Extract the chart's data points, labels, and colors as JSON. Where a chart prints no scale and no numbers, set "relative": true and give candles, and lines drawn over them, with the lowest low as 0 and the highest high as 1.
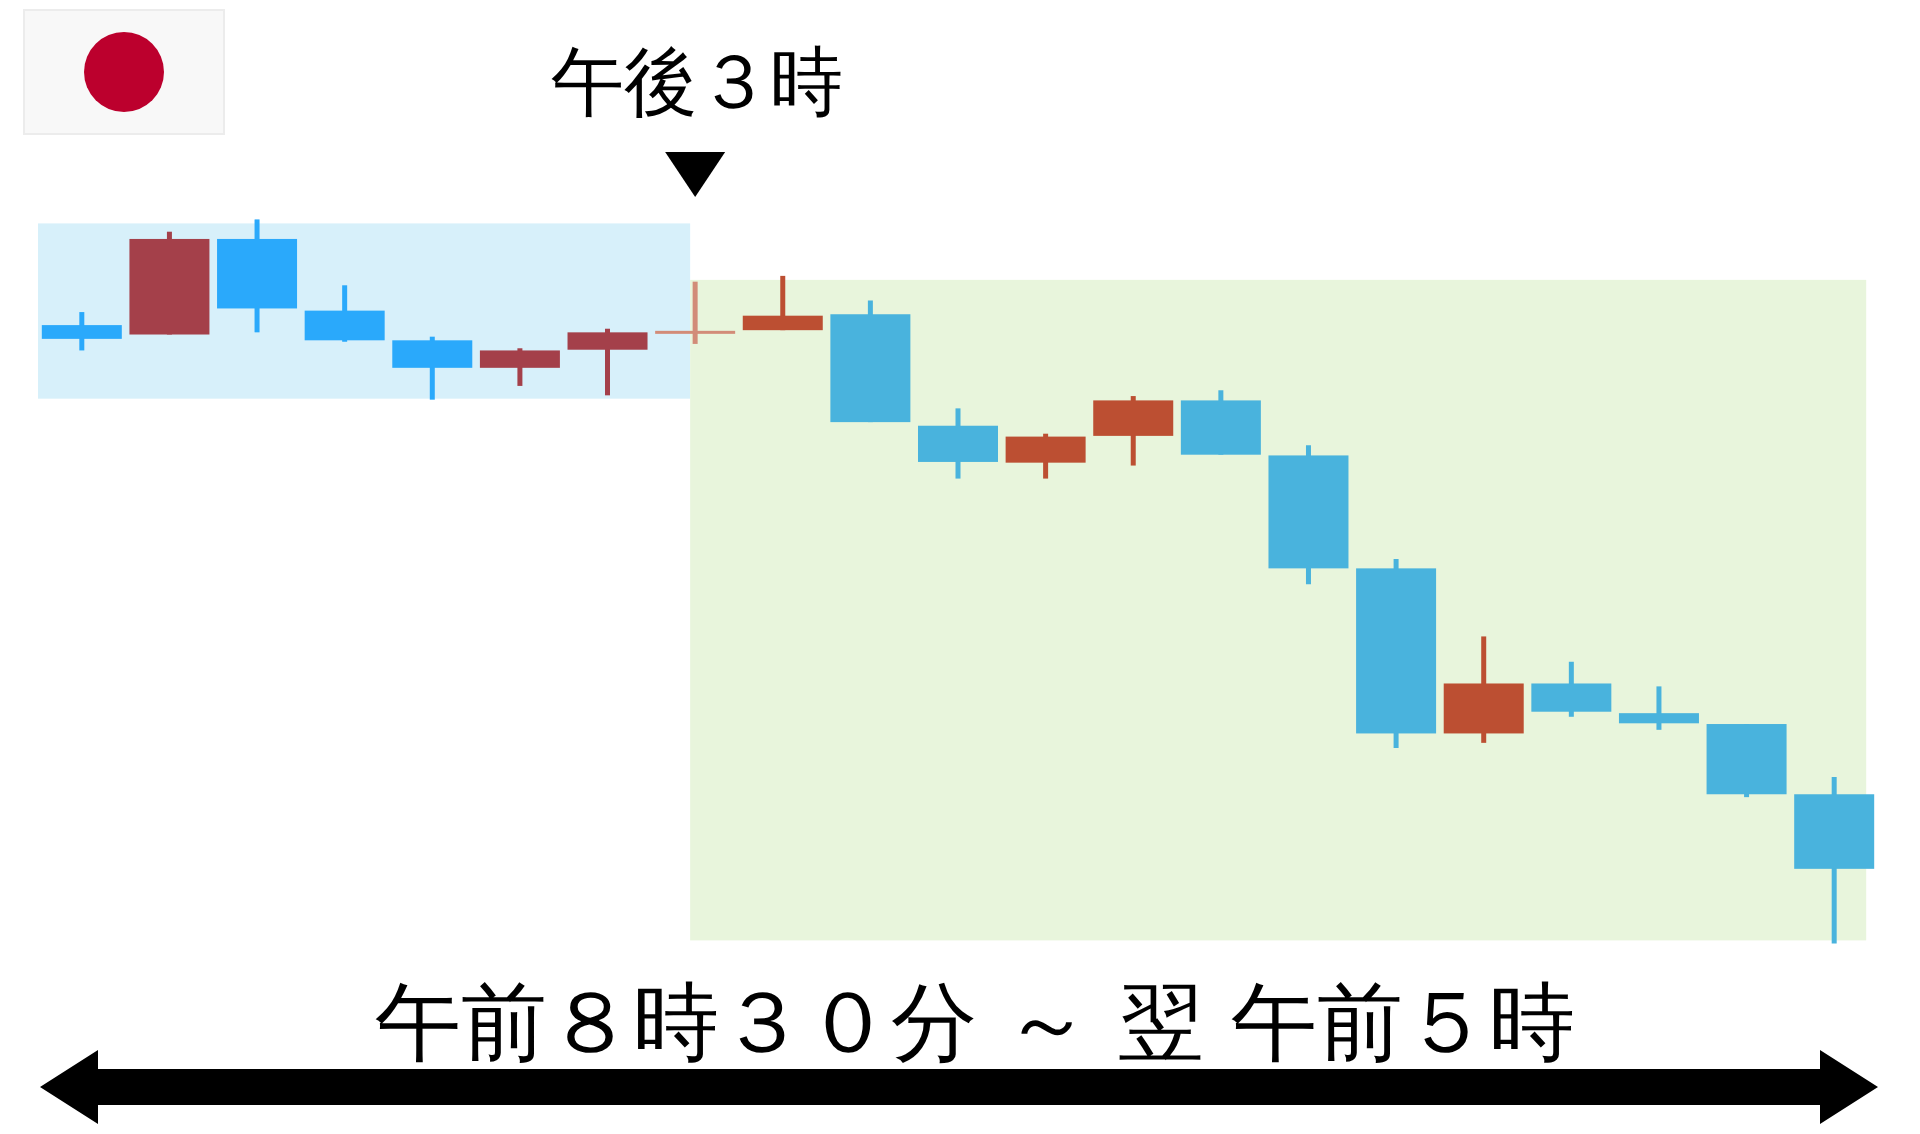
{
  "chart_data": {
    "type": "candlestick",
    "relative": true,
    "categories": [
      null,
      null,
      null,
      null,
      null,
      null,
      null,
      null,
      null,
      null,
      null,
      null,
      null,
      null,
      null,
      null,
      null,
      null,
      null,
      null,
      null
    ],
    "ohlc": [
      [
        0.854,
        0.872,
        0.819,
        0.835
      ],
      [
        0.841,
        0.983,
        0.841,
        0.973
      ],
      [
        0.973,
        1.0,
        0.844,
        0.877
      ],
      [
        0.874,
        0.909,
        0.831,
        0.833
      ],
      [
        0.833,
        0.838,
        0.751,
        0.795
      ],
      [
        0.795,
        0.822,
        0.77,
        0.819
      ],
      [
        0.82,
        0.849,
        0.757,
        0.844
      ],
      [
        0.844,
        0.914,
        0.828,
        0.844
      ],
      [
        0.847,
        0.922,
        0.847,
        0.867
      ],
      [
        0.869,
        0.888,
        0.72,
        0.72
      ],
      [
        0.715,
        0.739,
        0.642,
        0.665
      ],
      [
        0.664,
        0.704,
        0.642,
        0.7
      ],
      [
        0.701,
        0.756,
        0.66,
        0.75
      ],
      [
        0.75,
        0.764,
        0.675,
        0.675
      ],
      [
        0.674,
        0.688,
        0.496,
        0.518
      ],
      [
        0.518,
        0.531,
        0.27,
        0.29
      ],
      [
        0.29,
        0.424,
        0.277,
        0.359
      ],
      [
        0.359,
        0.389,
        0.313,
        0.32
      ],
      [
        0.318,
        0.355,
        0.295,
        0.304
      ],
      [
        0.303,
        0.303,
        0.202,
        0.206
      ],
      [
        0.206,
        0.23,
        0.0,
        0.103
      ]
    ],
    "colors": [
      "#2aa9fb",
      "#a4404a",
      "#2aa9fb",
      "#2aa9fb",
      "#2aa9fb",
      "#a4404a",
      "#a4404a",
      "#d28c78",
      "#bc4f32",
      "#49b3dd",
      "#49b3dd",
      "#bc4f32",
      "#bc4f32",
      "#49b3dd",
      "#49b3dd",
      "#49b3dd",
      "#bc4f32",
      "#49b3dd",
      "#49b3dd",
      "#49b3dd",
      "#49b3dd"
    ],
    "annotations": [
      "午後３時",
      "午前８時３０分 ～ 翌 午前５時"
    ]
  }
}
